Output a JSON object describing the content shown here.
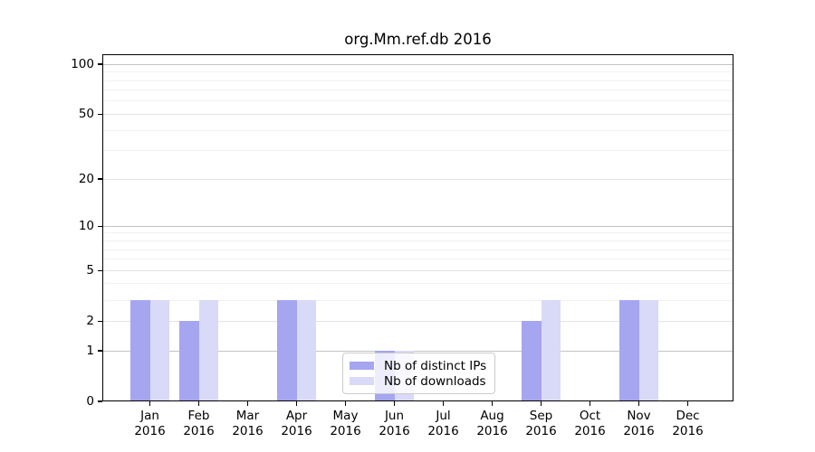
{
  "chart_data": {
    "type": "bar",
    "title": "org.Mm.ref.db 2016",
    "categories": [
      "Jan",
      "Feb",
      "Mar",
      "Apr",
      "May",
      "Jun",
      "Jul",
      "Aug",
      "Sep",
      "Oct",
      "Nov",
      "Dec"
    ],
    "x_tick_year": "2016",
    "series": [
      {
        "name": "Nb of distinct IPs",
        "color": "#a5a5f0",
        "values": [
          3,
          2,
          0,
          3,
          0,
          1,
          0,
          0,
          2,
          0,
          3,
          0
        ]
      },
      {
        "name": "Nb of downloads",
        "color": "#d9d9f8",
        "values": [
          3,
          3,
          0,
          3,
          0,
          1,
          0,
          0,
          3,
          0,
          3,
          0
        ]
      }
    ],
    "y_ticks": [
      0,
      1,
      2,
      5,
      10,
      20,
      50,
      100
    ],
    "y_decade_gridlines": [
      1,
      10,
      100
    ],
    "y_mid_gridlines": [
      2,
      5,
      20,
      50
    ],
    "y_minor_gridlines": [
      3,
      4,
      6,
      7,
      8,
      9,
      30,
      40,
      60,
      70,
      80,
      90
    ],
    "scale": "log1p",
    "ylim": [
      0,
      115
    ],
    "xlabel": "",
    "ylabel": "",
    "grid": true,
    "legend_position": "lower center"
  },
  "colors": {
    "bar_distinct_ips": "#a5a5f0",
    "bar_downloads": "#d9d9f8",
    "gridline_decade": "#c3c3c3",
    "gridline_mid": "#e3e3e3",
    "gridline_minor": "#f1f1f1",
    "axis_spine": "#000000",
    "background": "#ffffff"
  }
}
